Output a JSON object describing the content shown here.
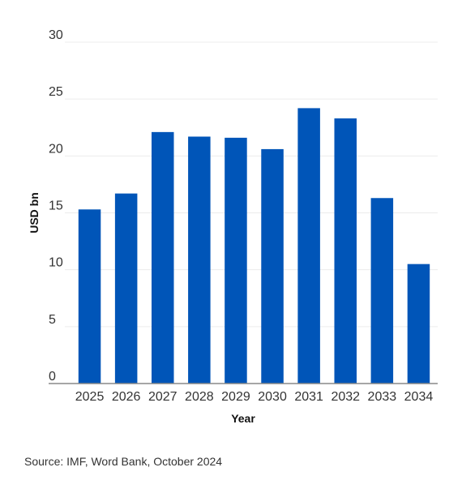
{
  "chart_data": {
    "type": "bar",
    "categories": [
      "2025",
      "2026",
      "2027",
      "2028",
      "2029",
      "2030",
      "2031",
      "2032",
      "2033",
      "2034"
    ],
    "values": [
      15.3,
      16.7,
      22.1,
      21.7,
      21.6,
      20.6,
      24.2,
      23.3,
      16.3,
      10.5
    ],
    "title": "",
    "xlabel": "Year",
    "ylabel": "USD bn",
    "ylim": [
      0,
      30
    ],
    "yticks": [
      "0",
      "5",
      "10",
      "15",
      "20",
      "25",
      "30"
    ],
    "bar_color": "#0055b8",
    "grid": true,
    "legend": "none"
  },
  "source": "Source: IMF, Word Bank, October 2024"
}
